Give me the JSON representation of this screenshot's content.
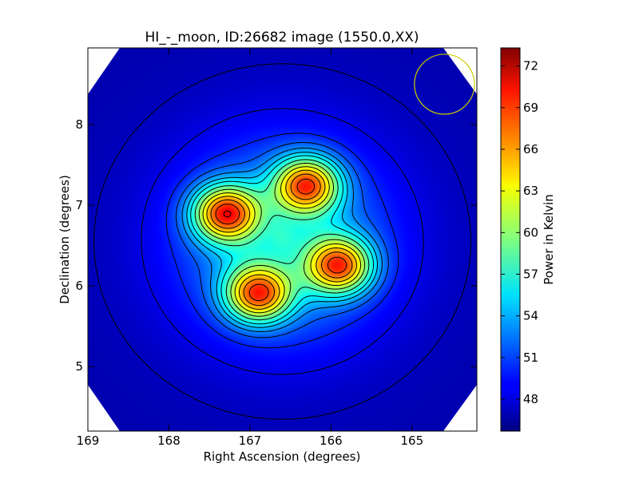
{
  "chart_data": {
    "type": "heatmap",
    "title": "HI_-_moon, ID:26682 image (1550.0,XX)",
    "xlabel": "Right Ascension (degrees)",
    "ylabel": "Declination (degrees)",
    "xlim": [
      169.0,
      164.2
    ],
    "ylim": [
      4.2,
      8.95
    ],
    "xticks": [
      169,
      168,
      167,
      166,
      165
    ],
    "yticks": [
      5,
      6,
      7,
      8
    ],
    "colorbar": {
      "label": "Power in Kelvin",
      "range": [
        45.7,
        73.3
      ],
      "ticks": [
        48,
        51,
        54,
        57,
        60,
        63,
        66,
        69,
        72
      ],
      "colormap": "jet"
    },
    "background_level": 47.0,
    "peaks": [
      {
        "ra": 167.3,
        "dec": 6.9,
        "value": 73.0
      },
      {
        "ra": 166.3,
        "dec": 7.25,
        "value": 72.0
      },
      {
        "ra": 165.9,
        "dec": 6.25,
        "value": 72.0
      },
      {
        "ra": 166.9,
        "dec": 5.9,
        "value": 72.0
      }
    ],
    "central_feature": {
      "ra": 166.6,
      "dec": 6.6,
      "value": 56.0
    },
    "beam_circle": {
      "ra": 164.6,
      "dec": 8.5,
      "radius_deg": 0.37,
      "color": "#cccc00"
    }
  }
}
